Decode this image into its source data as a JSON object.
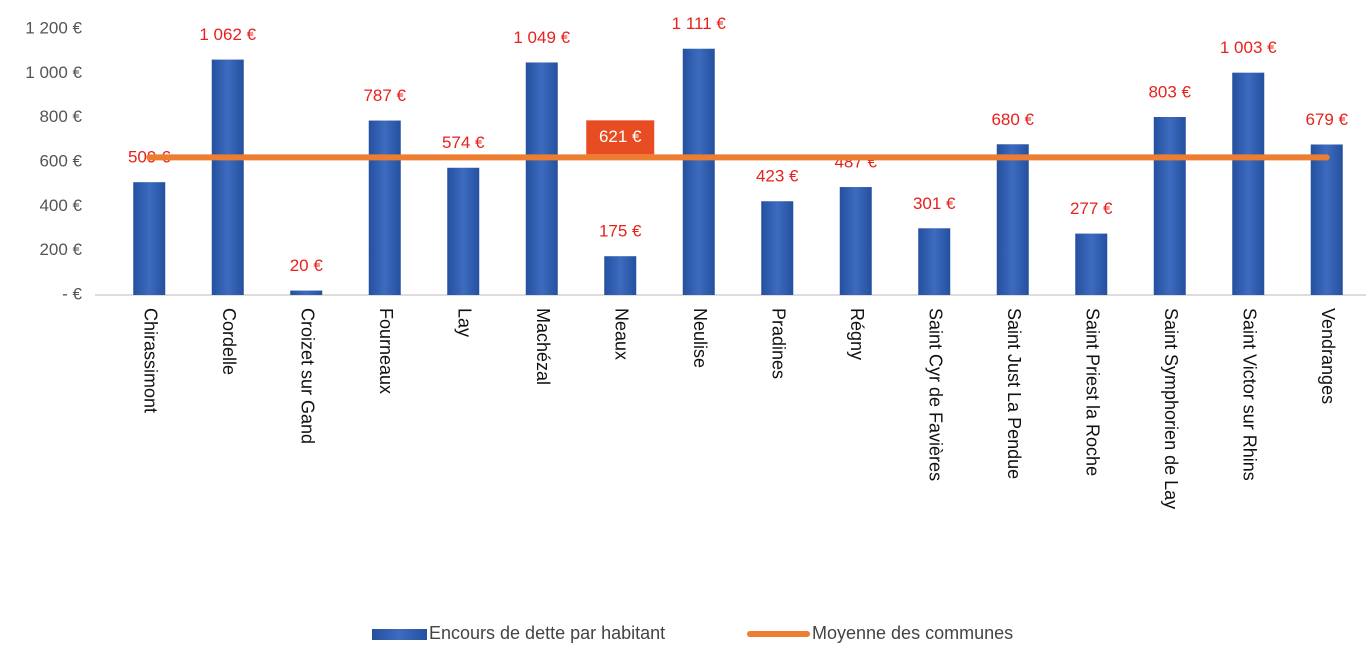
{
  "chart_data": {
    "type": "bar",
    "categories": [
      "Chirassimont",
      "Cordelle",
      "Croizet sur Gand",
      "Fourneaux",
      "Lay",
      "Machézal",
      "Neaux",
      "Neulise",
      "Pradines",
      "Régny",
      "Saint Cyr de Favières",
      "Saint Just La Pendue",
      "Saint Priest la Roche",
      "Saint Symphorien de Lay",
      "Saint Victor sur Rhins",
      "Vendranges"
    ],
    "series": [
      {
        "name": "Encours de dette par habitant",
        "color": "#2e5aab",
        "type": "bar",
        "values": [
          509,
          1062,
          20,
          787,
          574,
          1049,
          175,
          1111,
          423,
          487,
          301,
          680,
          277,
          803,
          1003,
          679
        ],
        "value_labels": [
          "509 €",
          "1 062 €",
          "20 €",
          "787 €",
          "574 €",
          "1 049 €",
          "175 €",
          "1 111 €",
          "423 €",
          "487 €",
          "301 €",
          "680 €",
          "277 €",
          "803 €",
          "1 003 €",
          "679 €"
        ]
      },
      {
        "name": "Moyenne des communes",
        "color": "#ed7d31",
        "type": "line",
        "values": [
          621,
          621,
          621,
          621,
          621,
          621,
          621,
          621,
          621,
          621,
          621,
          621,
          621,
          621,
          621,
          621
        ],
        "value_labels": [
          null,
          null,
          null,
          null,
          null,
          null,
          "621 €",
          null,
          null,
          null,
          null,
          null,
          null,
          null,
          null,
          null
        ]
      }
    ],
    "ylim": [
      0,
      1200
    ],
    "yticks": [
      {
        "value": 0,
        "label": "-  €"
      },
      {
        "value": 200,
        "label": "200 €"
      },
      {
        "value": 400,
        "label": "400 €"
      },
      {
        "value": 600,
        "label": "600 €"
      },
      {
        "value": 800,
        "label": "800 €"
      },
      {
        "value": 1000,
        "label": "1 000 €"
      },
      {
        "value": 1200,
        "label": "1 200 €"
      }
    ],
    "grid": false,
    "legend": "bottom"
  }
}
